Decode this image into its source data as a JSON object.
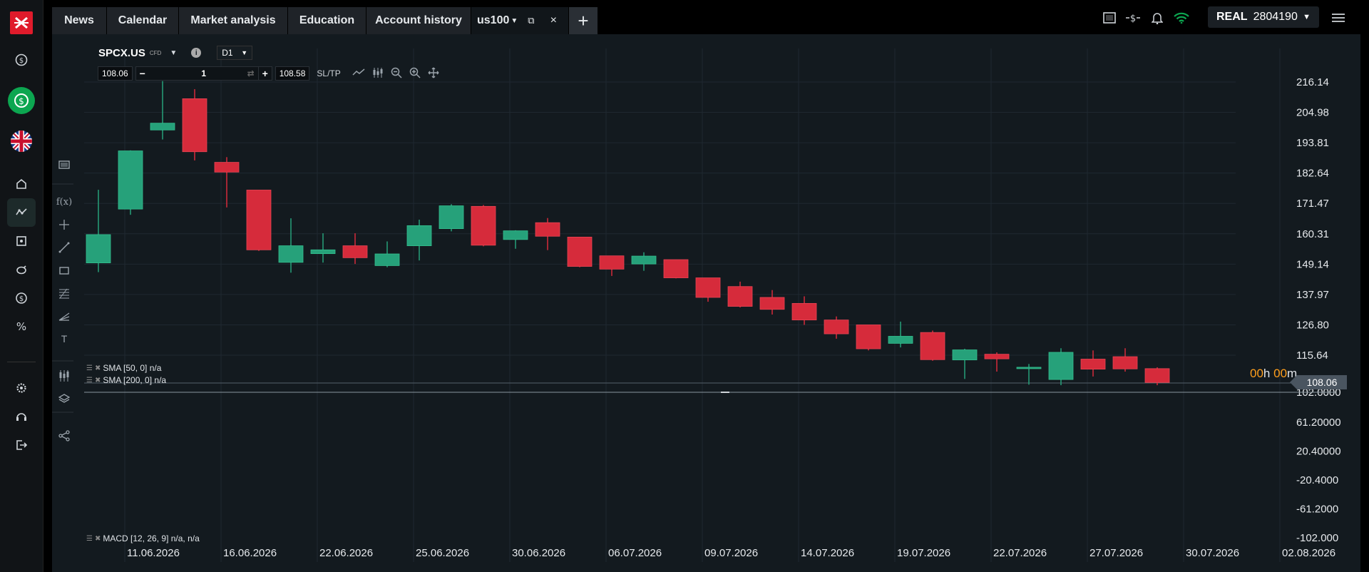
{
  "app": {
    "logo": "xtb-x-logo"
  },
  "sidebar": {
    "items": [
      {
        "name": "dollar-circle-icon"
      },
      {
        "name": "dollar-refresh-icon",
        "active": true
      },
      {
        "name": "uk-flag-icon"
      },
      {
        "name": "home-icon"
      },
      {
        "name": "chart-icon",
        "active": true
      },
      {
        "name": "news-icon"
      },
      {
        "name": "piggy-bank-icon"
      },
      {
        "name": "coin-icon"
      },
      {
        "name": "percent-icon"
      },
      {
        "name": "gear-icon"
      },
      {
        "name": "headset-icon"
      },
      {
        "name": "logout-icon"
      }
    ]
  },
  "tabs": [
    {
      "label": "News"
    },
    {
      "label": "Calendar"
    },
    {
      "label": "Market analysis"
    },
    {
      "label": "Education"
    },
    {
      "label": "Account history"
    }
  ],
  "instrument_tab": {
    "label": "us100"
  },
  "account": {
    "type": "REAL",
    "number": "2804190"
  },
  "chart_header": {
    "symbol": "SPCX.US",
    "symbol_type": "CFD",
    "timeframe": "D1"
  },
  "trade": {
    "sell_price": "108.06",
    "quantity": "1",
    "buy_price": "108.58",
    "sltp": "SL/TP"
  },
  "indicators": {
    "sma50": "SMA [50, 0] n/a",
    "sma200": "SMA [200, 0] n/a",
    "macd": "MACD [12, 26, 9] n/a, n/a"
  },
  "countdown": {
    "h": "00",
    "h_unit": "h",
    "m": "00",
    "m_unit": "m"
  },
  "current_price": "108.06",
  "colors": {
    "up": "#26a17a",
    "down": "#d62b3b",
    "accent": "#0ca650",
    "bg": "#131a1f"
  },
  "chart_data": {
    "type": "candlestick",
    "price_axis": [
      "216.14",
      "204.98",
      "193.81",
      "182.64",
      "171.47",
      "160.31",
      "149.14",
      "137.97",
      "126.80",
      "115.64",
      "102.0000"
    ],
    "macd_axis": [
      "61.20000",
      "20.40000",
      "-20.4000",
      "-61.2000",
      "-102.000"
    ],
    "x_labels": [
      "11.06.2026",
      "16.06.2026",
      "22.06.2026",
      "25.06.2026",
      "30.06.2026",
      "06.07.2026",
      "09.07.2026",
      "14.07.2026",
      "19.07.2026",
      "22.07.2026",
      "27.07.2026",
      "30.07.2026",
      "02.08.2026"
    ],
    "ylim": [
      102,
      216.14
    ],
    "candles": [
      {
        "o": 149.6,
        "h": 176.5,
        "l": 146.2,
        "c": 160.0
      },
      {
        "o": 169.4,
        "h": 191.0,
        "l": 167.3,
        "c": 190.8
      },
      {
        "o": 198.5,
        "h": 216.5,
        "l": 195.0,
        "c": 201.0
      },
      {
        "o": 210.0,
        "h": 213.5,
        "l": 187.3,
        "c": 190.5
      },
      {
        "o": 186.6,
        "h": 188.5,
        "l": 170.0,
        "c": 183.0
      },
      {
        "o": 176.4,
        "h": 176.4,
        "l": 154.0,
        "c": 154.4
      },
      {
        "o": 149.8,
        "h": 166.0,
        "l": 146.0,
        "c": 155.9
      },
      {
        "o": 153.0,
        "h": 160.5,
        "l": 149.7,
        "c": 154.4
      },
      {
        "o": 155.9,
        "h": 160.5,
        "l": 149.2,
        "c": 151.5
      },
      {
        "o": 148.6,
        "h": 157.5,
        "l": 148.0,
        "c": 152.9
      },
      {
        "o": 155.9,
        "h": 165.5,
        "l": 150.5,
        "c": 163.3
      },
      {
        "o": 162.2,
        "h": 171.2,
        "l": 161.2,
        "c": 170.6
      },
      {
        "o": 170.4,
        "h": 170.9,
        "l": 155.7,
        "c": 156.1
      },
      {
        "o": 158.2,
        "h": 161.6,
        "l": 154.8,
        "c": 161.4
      },
      {
        "o": 164.4,
        "h": 166.1,
        "l": 154.3,
        "c": 159.4
      },
      {
        "o": 159.1,
        "h": 159.1,
        "l": 148.0,
        "c": 148.3
      },
      {
        "o": 152.2,
        "h": 152.2,
        "l": 144.8,
        "c": 147.3
      },
      {
        "o": 149.2,
        "h": 153.5,
        "l": 146.7,
        "c": 152.1
      },
      {
        "o": 150.8,
        "h": 150.8,
        "l": 143.9,
        "c": 144.1
      },
      {
        "o": 144.1,
        "h": 144.1,
        "l": 135.3,
        "c": 136.9
      },
      {
        "o": 140.9,
        "h": 142.7,
        "l": 133.2,
        "c": 133.6
      },
      {
        "o": 136.9,
        "h": 139.6,
        "l": 130.6,
        "c": 132.5
      },
      {
        "o": 134.7,
        "h": 137.3,
        "l": 126.8,
        "c": 128.6
      },
      {
        "o": 128.6,
        "h": 129.9,
        "l": 121.7,
        "c": 123.5
      },
      {
        "o": 126.8,
        "h": 126.8,
        "l": 117.4,
        "c": 118.0
      },
      {
        "o": 120.0,
        "h": 128.0,
        "l": 118.5,
        "c": 122.6
      },
      {
        "o": 124.0,
        "h": 124.7,
        "l": 113.6,
        "c": 114.0
      },
      {
        "o": 113.9,
        "h": 118.0,
        "l": 106.9,
        "c": 117.6
      },
      {
        "o": 116.0,
        "h": 116.7,
        "l": 109.6,
        "c": 114.3
      },
      {
        "o": 111.0,
        "h": 112.4,
        "l": 104.8,
        "c": 111.2
      },
      {
        "o": 106.7,
        "h": 118.2,
        "l": 104.6,
        "c": 116.7
      },
      {
        "o": 114.2,
        "h": 117.4,
        "l": 107.8,
        "c": 110.5
      },
      {
        "o": 115.1,
        "h": 118.2,
        "l": 109.6,
        "c": 110.6
      },
      {
        "o": 110.7,
        "h": 111.2,
        "l": 104.6,
        "c": 105.6
      }
    ]
  }
}
